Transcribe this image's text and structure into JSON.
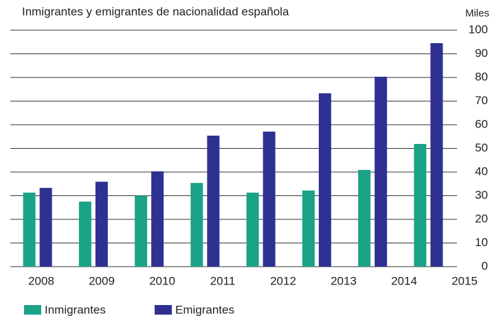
{
  "chart_data": {
    "type": "bar",
    "title": "Inmigrantes y emigrantes de nacionalidad española",
    "y_axis_label": "Miles",
    "categories": [
      "2008",
      "2009",
      "2010",
      "2011",
      "2012",
      "2013",
      "2014",
      "2015"
    ],
    "series": [
      {
        "name": "Inmigrantes",
        "color": "#1aa386",
        "values": [
          31.3,
          27.5,
          30,
          35.4,
          31.3,
          32.2,
          40.9,
          51.9
        ]
      },
      {
        "name": "Emigrantes",
        "color": "#2e3192",
        "values": [
          33.3,
          35.9,
          40.3,
          55.4,
          57.1,
          73.3,
          80.3,
          94.5
        ]
      }
    ],
    "ylim": [
      0,
      100
    ],
    "yticks": [
      0,
      10,
      20,
      30,
      40,
      50,
      60,
      70,
      80,
      90,
      100
    ],
    "grid": true
  }
}
